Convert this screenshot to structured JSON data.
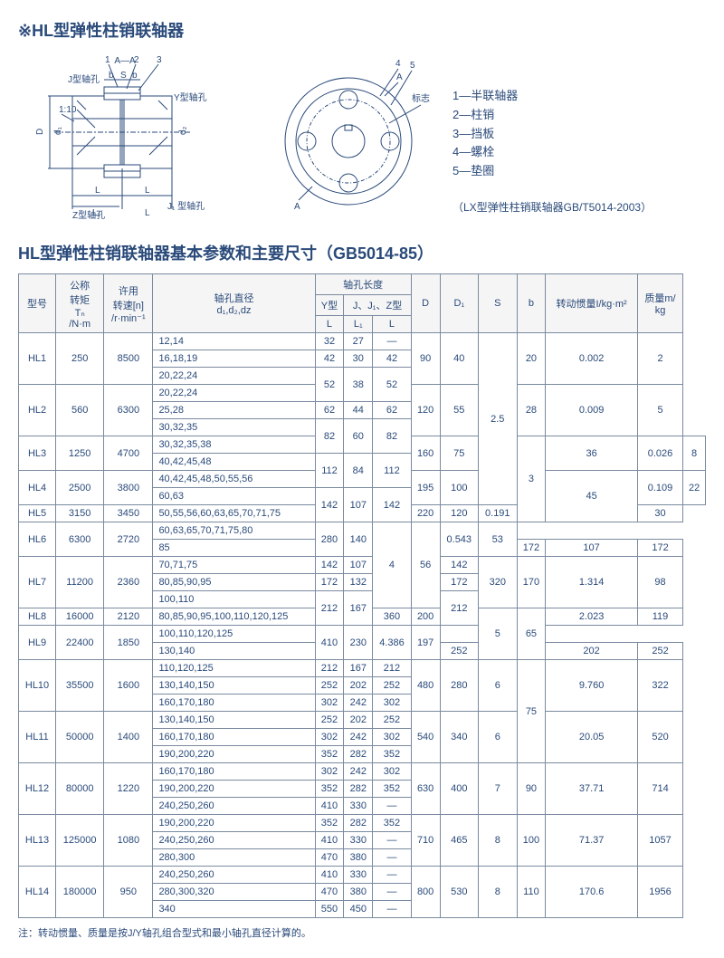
{
  "page_title": "※HL型弹性柱销联轴器",
  "diagram_labels": {
    "section": "A—A",
    "j_hole": "J型轴孔",
    "y_hole": "Y型轴孔",
    "z_hole": "Z型轴孔",
    "j1_hole": "J₁ 型轴孔",
    "taper": "1:10",
    "mark": "标志",
    "nums": [
      "1",
      "2",
      "3",
      "4",
      "5"
    ],
    "dims": [
      "D",
      "d₁",
      "d₂",
      "d₂",
      "b",
      "S",
      "b",
      "L",
      "L₁",
      "L",
      "L",
      "A",
      "A"
    ]
  },
  "legend": {
    "items": [
      "1—半联轴器",
      "2—柱销",
      "3—挡板",
      "4—螺栓",
      "5—垫圈"
    ],
    "sub": "（LX型弹性柱销联轴器GB/T5014-2003）"
  },
  "table_title": "HL型弹性柱销联轴器基本参数和主要尺寸（GB5014-85）",
  "headers": {
    "model": "型号",
    "torque": "公称\n转矩\nTₙ\n/N·m",
    "speed": "许用\n转速[n]\n/r·min⁻¹",
    "bore": "轴孔直径\nd₁,d₂,dz",
    "bore_len": "轴孔长度",
    "y_type": "Y型",
    "jz_type": "J、J₁、Z型",
    "L": "L",
    "L1": "L₁",
    "D": "D",
    "D1": "D₁",
    "S": "S",
    "b": "b",
    "inertia": "转动惯量I/kg·m²",
    "mass": "质量m/\nkg"
  },
  "rows": [
    {
      "model": "HL1",
      "torque": "250",
      "speed": "8500",
      "bores": [
        {
          "d": "12,14",
          "yL": "32",
          "L1": "27",
          "zL": "—"
        },
        {
          "d": "16,18,19",
          "yL": "42",
          "L1": "30",
          "zL": "42"
        },
        {
          "d": "20,22,24",
          "yL": "52",
          "L1": "38",
          "zL": "52",
          "share_down": true
        }
      ],
      "D": "90",
      "D1": "40",
      "S": "2.5",
      "S_span": 4,
      "b": "20",
      "inertia": "0.002",
      "mass": "2"
    },
    {
      "model": "HL2",
      "torque": "560",
      "speed": "6300",
      "bores": [
        {
          "d": "20,22,24",
          "skip_len": true
        },
        {
          "d": "25,28",
          "yL": "62",
          "L1": "44",
          "zL": "62"
        },
        {
          "d": "30,32,35",
          "yL": "82",
          "L1": "60",
          "zL": "82",
          "share_down": true
        }
      ],
      "D": "120",
      "D1": "55",
      "b": "28",
      "inertia": "0.009",
      "mass": "5"
    },
    {
      "model": "HL3",
      "torque": "1250",
      "speed": "4700",
      "bores": [
        {
          "d": "30,32,35,38",
          "skip_len": true
        },
        {
          "d": "40,42,45,48",
          "yL": "112",
          "L1": "84",
          "zL": "112",
          "share_down": true
        }
      ],
      "D": "160",
      "D1": "75",
      "S": "3",
      "S_span": 3,
      "b": "36",
      "inertia": "0.026",
      "mass": "8"
    },
    {
      "model": "HL4",
      "torque": "2500",
      "speed": "3800",
      "bores": [
        {
          "d": "40,42,45,48,50,55,56",
          "skip_len": true
        },
        {
          "d": "60,63",
          "yL": "142",
          "L1": "107",
          "zL": "142",
          "share_down": true
        }
      ],
      "D": "195",
      "D1": "100",
      "b": "45",
      "b_span": 2,
      "inertia": "0.109",
      "mass": "22"
    },
    {
      "model": "HL5",
      "torque": "3150",
      "speed": "3450",
      "bores": [
        {
          "d": "50,55,56,60,63,65,70,71,75",
          "skip_len": true
        }
      ],
      "D": "220",
      "D1": "120",
      "inertia": "0.191",
      "mass": "30"
    },
    {
      "model": "HL6",
      "torque": "6300",
      "speed": "2720",
      "bores": [
        {
          "d": "60,63,65,70,71,75,80",
          "skip_len": true,
          "prev_share": true
        },
        {
          "d": "85",
          "yL": "172",
          "L1": "107",
          "zL": "172"
        }
      ],
      "D": "280",
      "D1": "140",
      "S": "4",
      "S_span": 2,
      "b": "56",
      "b_span": 2,
      "inertia": "0.543",
      "mass": "53"
    },
    {
      "model": "HL7",
      "torque": "11200",
      "speed": "2360",
      "bores": [
        {
          "d": "70,71,75",
          "yL": "142",
          "L1": "107",
          "zL": "142"
        },
        {
          "d": "80,85,90,95",
          "yL": "172",
          "L1": "132",
          "zL": "172"
        },
        {
          "d": "100,110",
          "yL": "212",
          "L1": "167",
          "zL": "212",
          "share_down": true
        }
      ],
      "D": "320",
      "D1": "170",
      "inertia": "1.314",
      "mass": "98"
    },
    {
      "model": "HL8",
      "torque": "16000",
      "speed": "2120",
      "bores": [
        {
          "d": "80,85,90,95,100,110,120,125",
          "skip_len": true
        }
      ],
      "D": "360",
      "D1": "200",
      "S": "5",
      "S_span": 2,
      "b": "65",
      "b_span": 2,
      "inertia": "2.023",
      "mass": "119"
    },
    {
      "model": "HL9",
      "torque": "22400",
      "speed": "1850",
      "bores": [
        {
          "d": "100,110,120,125",
          "skip_len": true,
          "prev_share": true
        },
        {
          "d": "130,140",
          "yL": "252",
          "L1": "202",
          "zL": "252"
        }
      ],
      "D": "410",
      "D1": "230",
      "inertia": "4.386",
      "mass": "197"
    },
    {
      "model": "HL10",
      "torque": "35500",
      "speed": "1600",
      "bores": [
        {
          "d": "110,120,125",
          "yL": "212",
          "L1": "167",
          "zL": "212"
        },
        {
          "d": "130,140,150",
          "yL": "252",
          "L1": "202",
          "zL": "252"
        },
        {
          "d": "160,170,180",
          "yL": "302",
          "L1": "242",
          "zL": "302"
        }
      ],
      "D": "480",
      "D1": "280",
      "S": "6",
      "b": "75",
      "b_span": 2,
      "inertia": "9.760",
      "mass": "322"
    },
    {
      "model": "HL11",
      "torque": "50000",
      "speed": "1400",
      "bores": [
        {
          "d": "130,140,150",
          "yL": "252",
          "L1": "202",
          "zL": "252"
        },
        {
          "d": "160,170,180",
          "yL": "302",
          "L1": "242",
          "zL": "302"
        },
        {
          "d": "190,200,220",
          "yL": "352",
          "L1": "282",
          "zL": "352"
        }
      ],
      "D": "540",
      "D1": "340",
      "S": "6",
      "inertia": "20.05",
      "mass": "520"
    },
    {
      "model": "HL12",
      "torque": "80000",
      "speed": "1220",
      "bores": [
        {
          "d": "160,170,180",
          "yL": "302",
          "L1": "242",
          "zL": "302"
        },
        {
          "d": "190,200,220",
          "yL": "352",
          "L1": "282",
          "zL": "352"
        },
        {
          "d": "240,250,260",
          "yL": "410",
          "L1": "330",
          "zL": "—"
        }
      ],
      "D": "630",
      "D1": "400",
      "S": "7",
      "b": "90",
      "inertia": "37.71",
      "mass": "714"
    },
    {
      "model": "HL13",
      "torque": "125000",
      "speed": "1080",
      "bores": [
        {
          "d": "190,200,220",
          "yL": "352",
          "L1": "282",
          "zL": "352"
        },
        {
          "d": "240,250,260",
          "yL": "410",
          "L1": "330",
          "zL": "—"
        },
        {
          "d": "280,300",
          "yL": "470",
          "L1": "380",
          "zL": "—"
        }
      ],
      "D": "710",
      "D1": "465",
      "S": "8",
      "b": "100",
      "inertia": "71.37",
      "mass": "1057"
    },
    {
      "model": "HL14",
      "torque": "180000",
      "speed": "950",
      "bores": [
        {
          "d": "240,250,260",
          "yL": "410",
          "L1": "330",
          "zL": "—"
        },
        {
          "d": "280,300,320",
          "yL": "470",
          "L1": "380",
          "zL": "—"
        },
        {
          "d": "340",
          "yL": "550",
          "L1": "450",
          "zL": "—"
        }
      ],
      "D": "800",
      "D1": "530",
      "S": "8",
      "b": "110",
      "inertia": "170.6",
      "mass": "1956"
    }
  ],
  "footnote": "注：转动惯量、质量是按J/Y轴孔组合型式和最小轴孔直径计算的。",
  "colors": {
    "line": "#2a4a7a",
    "text": "#2a4a7a",
    "bg": "#ffffff"
  }
}
